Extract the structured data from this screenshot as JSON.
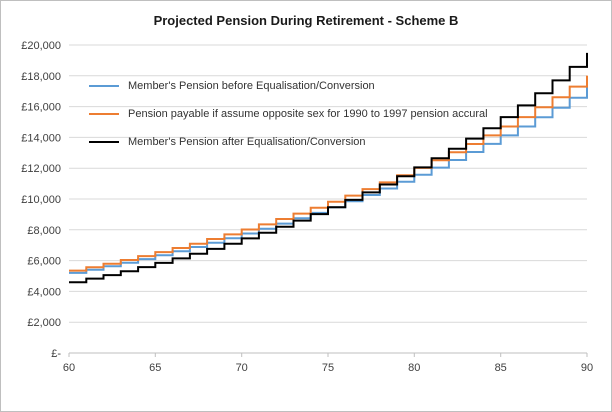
{
  "chart": {
    "title": "Projected Pension During Retirement - Scheme B"
  },
  "chart_data": {
    "type": "line",
    "step": true,
    "title": "Projected Pension During Retirement - Scheme B",
    "xlabel": "",
    "ylabel": "",
    "xlim": [
      60,
      90
    ],
    "ylim": [
      0,
      20000
    ],
    "grid": "horizontal",
    "legend_position": "inside-top-left",
    "x": [
      60,
      61,
      62,
      63,
      64,
      65,
      66,
      67,
      68,
      69,
      70,
      71,
      72,
      73,
      74,
      75,
      76,
      77,
      78,
      79,
      80,
      81,
      82,
      83,
      84,
      85,
      86,
      87,
      88,
      89,
      90
    ],
    "x_ticks": [
      60,
      65,
      70,
      75,
      80,
      85,
      90
    ],
    "y_ticks": [
      0,
      2000,
      4000,
      6000,
      8000,
      10000,
      12000,
      14000,
      16000,
      18000,
      20000
    ],
    "y_tick_labels": [
      "£-",
      "£2,000",
      "£4,000",
      "£6,000",
      "£8,000",
      "£10,000",
      "£12,000",
      "£14,000",
      "£16,000",
      "£18,000",
      "£20,000"
    ],
    "series": [
      {
        "name": "Member's Pension before Equalisation/Conversion",
        "color": "#5B9BD5",
        "values": [
          5200,
          5410,
          5630,
          5860,
          6100,
          6350,
          6610,
          6880,
          7160,
          7450,
          7760,
          8070,
          8400,
          8750,
          9100,
          9470,
          9860,
          10260,
          10680,
          11120,
          11570,
          12040,
          12530,
          13050,
          13580,
          14130,
          14710,
          15310,
          15930,
          16580,
          17260
        ]
      },
      {
        "name": "Pension payable if assume opposite sex for 1990 to 1997 pension accural",
        "color": "#ED7D31",
        "values": [
          5350,
          5570,
          5800,
          6040,
          6290,
          6550,
          6820,
          7100,
          7400,
          7700,
          8020,
          8350,
          8700,
          9050,
          9430,
          9820,
          10220,
          10640,
          11080,
          11540,
          12020,
          12520,
          13030,
          13570,
          14130,
          14710,
          15320,
          15960,
          16610,
          17300,
          18010
        ]
      },
      {
        "name": "Member's Pension after Equalisation/Conversion",
        "color": "#000000",
        "values": [
          4600,
          4830,
          5060,
          5310,
          5580,
          5850,
          6140,
          6440,
          6760,
          7090,
          7440,
          7810,
          8200,
          8600,
          9020,
          9470,
          9940,
          10430,
          10940,
          11480,
          12050,
          12640,
          13260,
          13920,
          14600,
          15320,
          16080,
          16870,
          17700,
          18580,
          19490
        ]
      }
    ]
  }
}
